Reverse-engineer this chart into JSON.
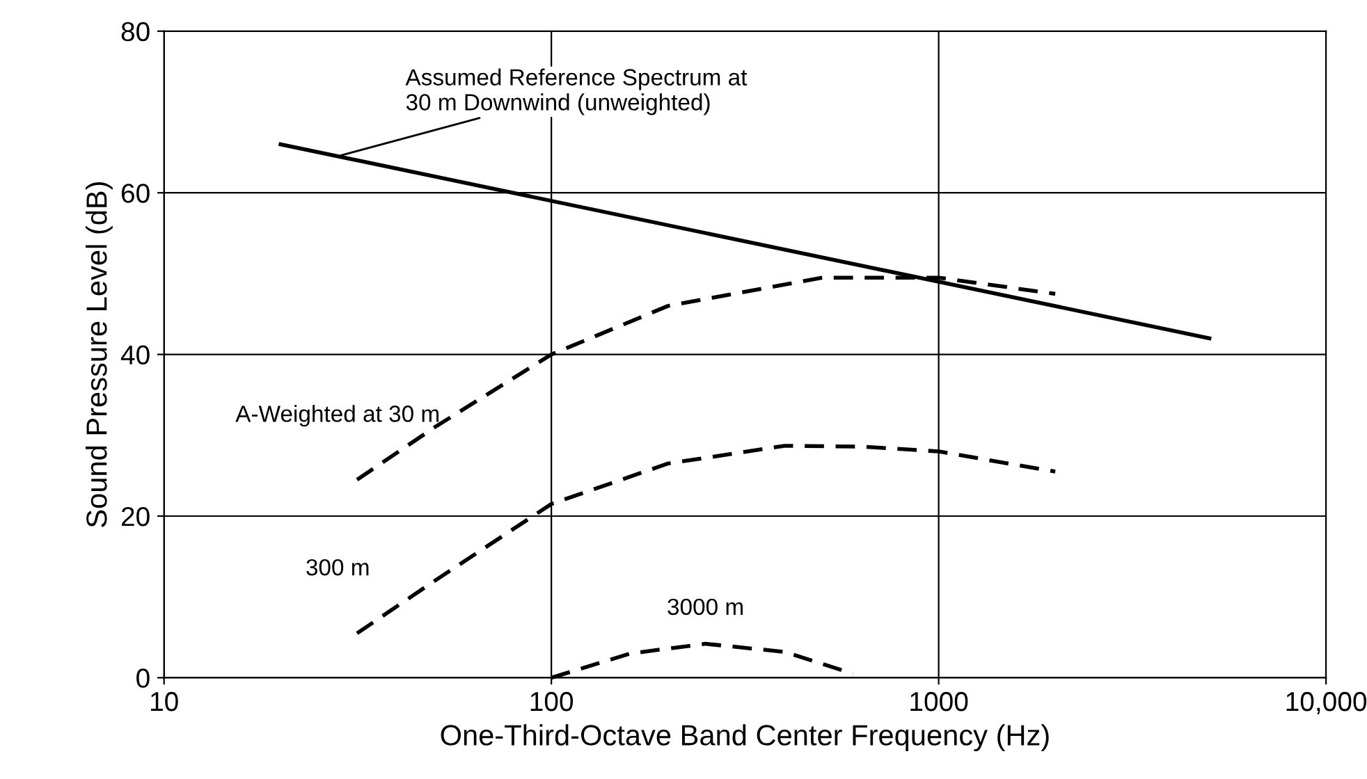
{
  "chart_data": {
    "type": "line",
    "xlabel": "One-Third-Octave Band Center Frequency (Hz)",
    "ylabel": "Sound Pressure Level (dB)",
    "log": "x",
    "grid": true,
    "marker": "none",
    "xlim": [
      10,
      10000
    ],
    "xticks": [
      10,
      100,
      1000,
      {
        "value": 10000,
        "label": "10,000"
      }
    ],
    "ylim": [
      0,
      80
    ],
    "yticks": [
      0,
      20,
      40,
      60,
      80
    ],
    "series": [
      {
        "color": "#000000",
        "line_style": "solid",
        "x": [
          20,
          5000
        ],
        "values": [
          66,
          42
        ]
      },
      {
        "name": "A-Weighted at 30 m",
        "color": "#000000",
        "line_style": "dashed",
        "x": [
          31.5,
          50,
          100,
          200,
          500,
          1000,
          2000
        ],
        "values": [
          24.5,
          31,
          40,
          46,
          49.5,
          49.5,
          47.5
        ]
      },
      {
        "name": "300 m",
        "color": "#000000",
        "line_style": "dashed",
        "x": [
          31.5,
          50,
          100,
          200,
          400,
          630,
          1000,
          2000
        ],
        "values": [
          5.5,
          12,
          21.5,
          26.5,
          28.7,
          28.6,
          28,
          25.5
        ]
      },
      {
        "name": "3000 m",
        "color": "#000000",
        "line_style": "dashed",
        "x": [
          100,
          160,
          250,
          400,
          600
        ],
        "values": [
          0,
          3,
          4.2,
          3.2,
          0.5
        ]
      }
    ],
    "annotations": [
      {
        "text": "Assumed Reference Spectrum at\n30 m Downwind (unweighted)",
        "x": 28,
        "y": 64.5
      }
    ]
  }
}
